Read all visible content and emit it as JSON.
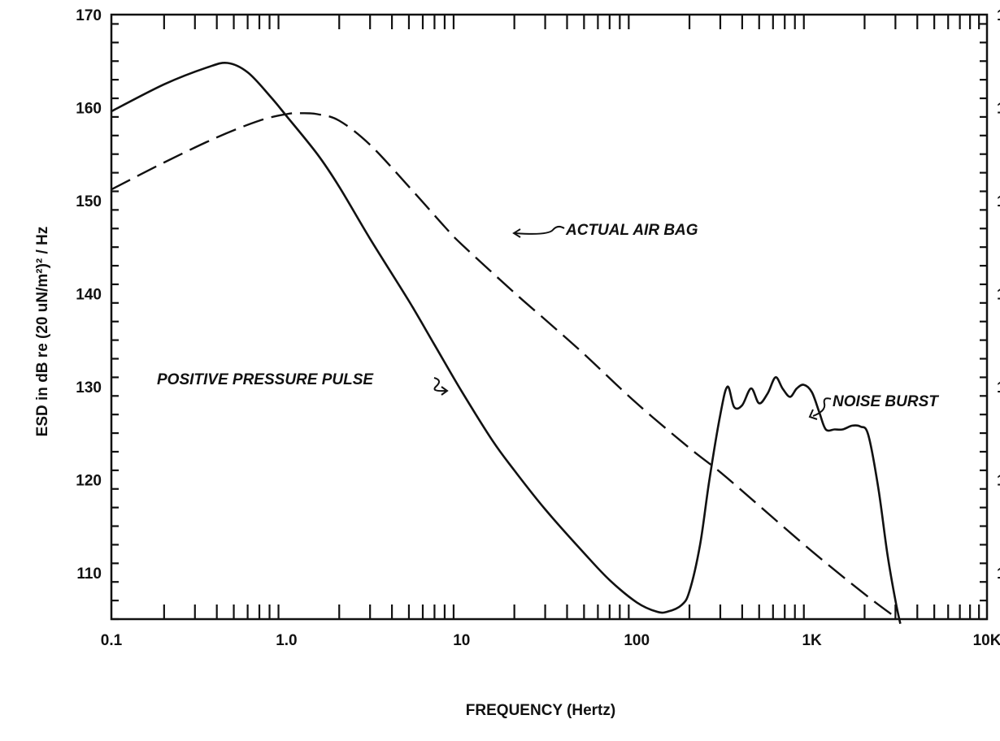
{
  "chart_data": {
    "type": "line",
    "xlabel": "FREQUENCY (Hertz)",
    "ylabel": "ESD in dB re (20 uN/m²)² / Hz",
    "x_scale": "log",
    "xlim": [
      0.1,
      10000
    ],
    "ylim": [
      105,
      170
    ],
    "x_ticks": [
      {
        "value": 0.1,
        "label": "0.1"
      },
      {
        "value": 1,
        "label": "1.0"
      },
      {
        "value": 10,
        "label": "10"
      },
      {
        "value": 100,
        "label": "100"
      },
      {
        "value": 1000,
        "label": "1K"
      },
      {
        "value": 10000,
        "label": "10K"
      }
    ],
    "y_ticks": [
      {
        "value": 110,
        "label": "110"
      },
      {
        "value": 120,
        "label": "120"
      },
      {
        "value": 130,
        "label": "130"
      },
      {
        "value": 140,
        "label": "140"
      },
      {
        "value": 150,
        "label": "150"
      },
      {
        "value": 160,
        "label": "160"
      },
      {
        "value": 170,
        "label": "170"
      }
    ],
    "grid": false,
    "series": [
      {
        "name": "POSITIVE PRESSURE PULSE",
        "style": "solid",
        "x": [
          0.1,
          0.2,
          0.35,
          0.46,
          0.6,
          0.8,
          1.0,
          1.5,
          2,
          3,
          5,
          7,
          10,
          15,
          20,
          30,
          50,
          70,
          100,
          130,
          150,
          180,
          200,
          230,
          260,
          300,
          330,
          360,
          400,
          450,
          500,
          560,
          620,
          680,
          750,
          820,
          900,
          1000,
          1100,
          1200,
          1350,
          1500,
          1700,
          1900,
          2100,
          2400,
          2700,
          3000,
          3200
        ],
        "y": [
          159.6,
          162.5,
          164.3,
          164.8,
          163.8,
          161.3,
          159.1,
          155.0,
          151.5,
          145.9,
          139.2,
          134.5,
          129.5,
          124.2,
          121.0,
          116.8,
          112.1,
          109.2,
          106.8,
          105.8,
          105.8,
          106.5,
          108.0,
          113.0,
          120.0,
          127.0,
          130.0,
          127.8,
          128.0,
          129.8,
          128.2,
          129.3,
          131.0,
          129.8,
          128.9,
          129.8,
          130.2,
          129.4,
          127.3,
          125.4,
          125.4,
          125.4,
          125.8,
          125.7,
          124.8,
          119.0,
          112.0,
          107.0,
          104.5
        ]
      },
      {
        "name": "ACTUAL AIR BAG",
        "style": "dashed",
        "x": [
          0.1,
          0.2,
          0.4,
          0.7,
          1.0,
          1.2,
          1.5,
          2,
          3,
          5,
          8,
          10,
          20,
          30,
          50,
          100,
          200,
          300,
          500,
          1000,
          2000,
          3000
        ],
        "y": [
          151.2,
          154.1,
          156.8,
          158.6,
          159.3,
          159.4,
          159.3,
          158.6,
          156.0,
          151.5,
          147.2,
          145.3,
          140.1,
          137.2,
          133.5,
          128.2,
          123.4,
          120.8,
          117.2,
          112.3,
          107.7,
          105.2
        ]
      }
    ],
    "annotations": [
      {
        "text": "ACTUAL AIR BAG",
        "points_to": "ACTUAL AIR BAG"
      },
      {
        "text": "POSITIVE PRESSURE PULSE",
        "points_to": "POSITIVE PRESSURE PULSE"
      },
      {
        "text": "NOISE BURST",
        "points_to": "POSITIVE PRESSURE PULSE"
      }
    ]
  }
}
